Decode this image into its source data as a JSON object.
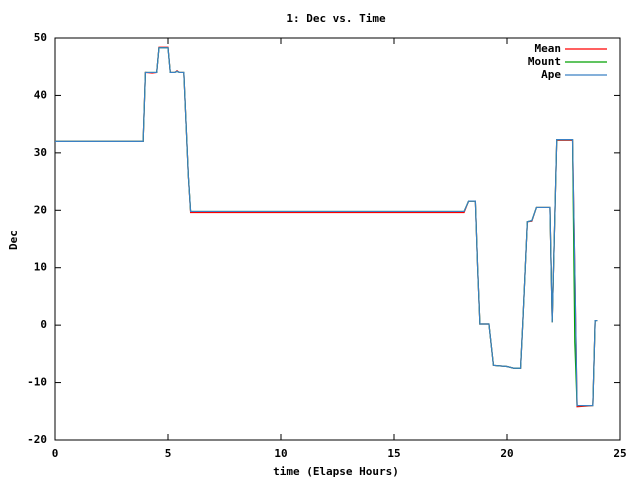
{
  "chart_data": {
    "type": "line",
    "title": "1: Dec vs. Time",
    "x_label": "time (Elapse Hours)",
    "y_label": "Dec",
    "x": [
      0,
      3.9,
      4.0,
      4.3,
      4.5,
      4.6,
      5.0,
      5.1,
      5.3,
      5.4,
      5.5,
      5.7,
      5.8,
      5.9,
      6.0,
      17.8,
      18.1,
      18.3,
      18.6,
      18.7,
      18.8,
      19.2,
      19.4,
      20.0,
      20.3,
      20.6,
      20.7,
      20.9,
      21.1,
      21.3,
      21.9,
      22.0,
      22.2,
      22.9,
      23.0,
      23.1,
      23.8,
      23.9,
      24.0
    ],
    "series": [
      {
        "name": "Mean",
        "color": "#ff0000",
        "values": [
          32,
          32,
          44,
          43.9,
          44,
          48.4,
          48.4,
          44,
          44,
          44.3,
          44,
          44,
          35,
          26,
          19.6,
          19.6,
          19.6,
          21.6,
          21.6,
          10,
          0.2,
          0.2,
          -7,
          -7.2,
          -7.5,
          -7.5,
          0.5,
          18,
          18.1,
          20.5,
          20.5,
          0.5,
          32.2,
          32.2,
          10,
          -14.2,
          -14,
          0.8,
          0.8
        ]
      },
      {
        "name": "Mount",
        "color": "#00a000",
        "values": [
          32,
          32,
          44,
          44,
          44,
          48.3,
          48.3,
          44,
          44,
          44.2,
          44,
          44,
          35,
          26,
          19.8,
          19.8,
          19.8,
          21.6,
          21.6,
          10,
          0.2,
          0.2,
          -7,
          -7.2,
          -7.5,
          -7.5,
          0.5,
          18,
          18.2,
          20.5,
          20.5,
          0.5,
          32.3,
          32.3,
          -3,
          -14,
          -14,
          0.8,
          0.8
        ]
      },
      {
        "name": "Ape",
        "color": "#3a80c4",
        "values": [
          32,
          32,
          44,
          44,
          44,
          48.3,
          48.3,
          44,
          44,
          44.2,
          44,
          44,
          35,
          26,
          19.8,
          19.8,
          19.8,
          21.6,
          21.6,
          10,
          0.2,
          0.2,
          -7,
          -7.2,
          -7.5,
          -7.5,
          0.5,
          18,
          18.2,
          20.5,
          20.5,
          0.5,
          32.3,
          32.3,
          10,
          -14,
          -14,
          0.8,
          0.8
        ]
      }
    ],
    "xlim": [
      0,
      25
    ],
    "xticks": [
      0,
      5,
      10,
      15,
      20,
      25
    ],
    "ylim": [
      -20,
      50
    ],
    "yticks": [
      -20,
      -10,
      0,
      10,
      20,
      30,
      40,
      50
    ],
    "legend": "top-right"
  }
}
